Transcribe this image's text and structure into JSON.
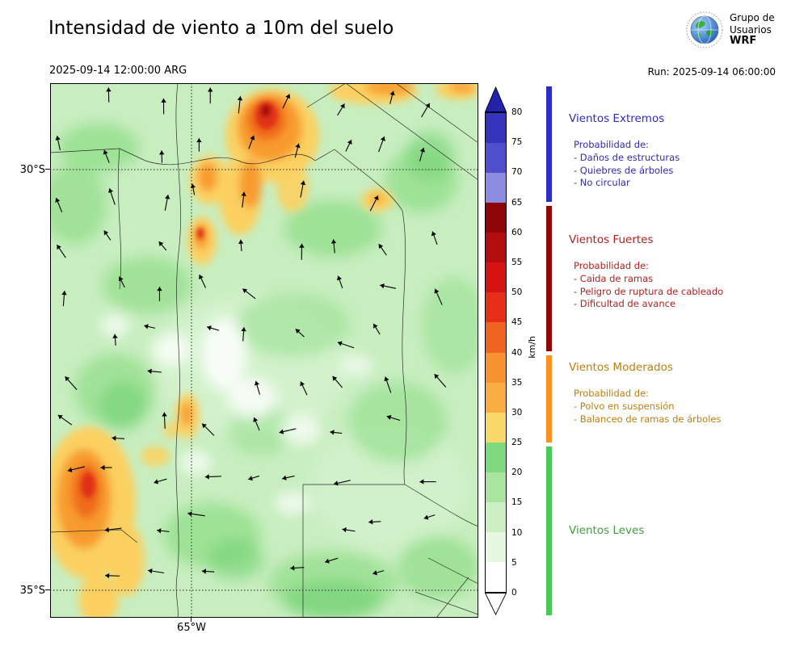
{
  "header": {
    "title": "Intensidad de viento a 10m del suelo",
    "valid_time": "2025-09-14 12:00:00 ARG",
    "run_label": "Run: 2025-09-14 06:00:00",
    "logo": {
      "line1": "Grupo de",
      "line2": "Usuarios",
      "line3": "WRF"
    }
  },
  "map": {
    "lat_ticks": [
      "30°S",
      "35°S"
    ],
    "lon_ticks": [
      "65°W"
    ]
  },
  "colorbar": {
    "unit": "km/h",
    "ticks": [
      0,
      5,
      10,
      15,
      20,
      25,
      30,
      35,
      40,
      45,
      50,
      55,
      60,
      65,
      70,
      75,
      80
    ],
    "colors_bottom_to_top": [
      "#ffffff",
      "#e6f8e0",
      "#ccf0c4",
      "#a9e59e",
      "#7fd97f",
      "#f9d969",
      "#f8ae43",
      "#f69330",
      "#ef6420",
      "#e62e18",
      "#d61313",
      "#b30d0d",
      "#8f0606",
      "#8c8ce0",
      "#5050cf",
      "#3434bf"
    ],
    "extend_over_color": "#2222ad",
    "extend_under_color": "#ffffff"
  },
  "legend": {
    "categories": [
      {
        "name": "Vientos Extremos",
        "color": "#2d2dbe",
        "prob_label": "Probabilidad de:",
        "items": [
          "- Daños de estructuras",
          "- Quiebres de árboles",
          "- No circular"
        ]
      },
      {
        "name": "Vientos Fuertes",
        "color": "#8f0606",
        "prob_label": "Probabilidad de:",
        "items": [
          "- Caida de ramas",
          "- Peligro de ruptura de cableado",
          "- Dificultad de avance"
        ]
      },
      {
        "name": "Vientos Moderados",
        "color": "#f79421",
        "prob_label": "Probabilidad de:",
        "items": [
          "- Polvo en suspensión",
          "- Balanceo de ramas de árboles"
        ]
      },
      {
        "name": "Vientos Leves",
        "color": "#46cc52",
        "prob_label": "",
        "items": []
      }
    ]
  }
}
